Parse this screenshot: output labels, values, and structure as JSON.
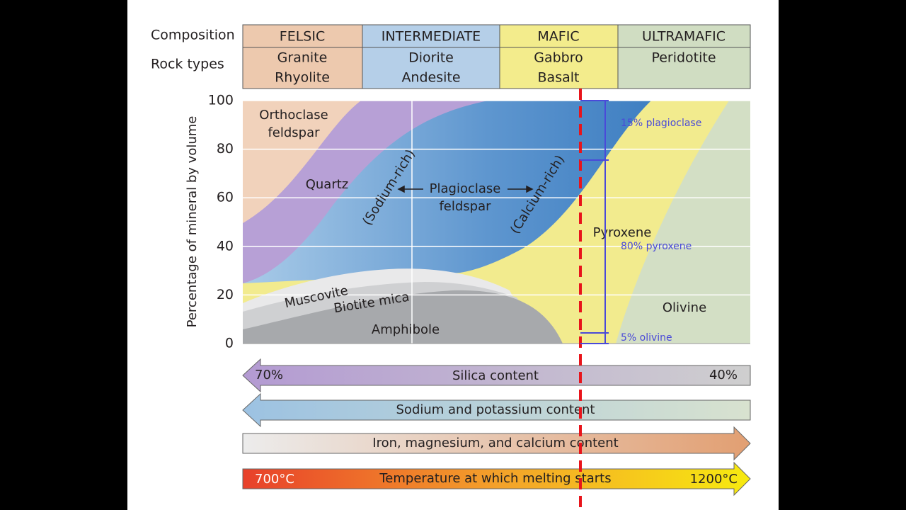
{
  "header": {
    "row_labels": [
      "Composition",
      "Rock types"
    ],
    "columns": [
      {
        "composition": "FELSIC",
        "rocks": [
          "Granite",
          "Rhyolite"
        ]
      },
      {
        "composition": "INTERMEDIATE",
        "rocks": [
          "Diorite",
          "Andesite"
        ]
      },
      {
        "composition": "MAFIC",
        "rocks": [
          "Gabbro",
          "Basalt"
        ]
      },
      {
        "composition": "ULTRAMAFIC",
        "rocks": [
          "Peridotite"
        ]
      }
    ]
  },
  "plot": {
    "y_axis_label": "Percentage of mineral by volume",
    "yticks": [
      0,
      20,
      40,
      60,
      80,
      100
    ],
    "minerals": {
      "orthoclase": [
        "Orthoclase",
        "feldspar"
      ],
      "quartz": "Quartz",
      "sodium_rich": "(Sodium-rich)",
      "plagioclase": [
        "Plagioclase",
        "feldspar"
      ],
      "calcium_rich": "(Calcium-rich)",
      "muscovite": "Muscovite",
      "biotite": "Biotite mica",
      "amphibole": "Amphibole",
      "pyroxene": "Pyroxene",
      "olivine": "Olivine"
    }
  },
  "annotations": [
    "15% plagioclase",
    "80% pyroxene",
    "5% olivine"
  ],
  "gradients": [
    {
      "label": "Silica content",
      "left": "70%",
      "right": "40%"
    },
    {
      "label": "Sodium and potassium content"
    },
    {
      "label": "Iron, magnesium, and calcium content"
    },
    {
      "label": "Temperature at which melting starts",
      "left": "700°C",
      "right": "1200°C"
    }
  ]
}
